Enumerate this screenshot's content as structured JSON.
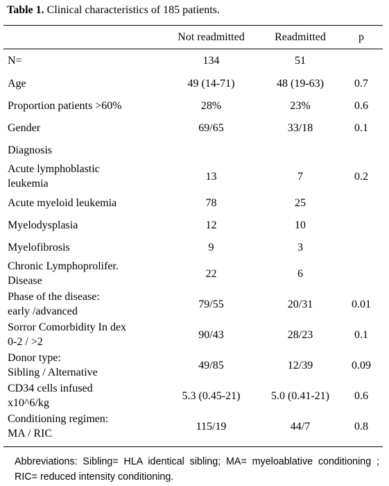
{
  "caption": {
    "label": "Table 1.",
    "text": " Clinical characteristics of 185 patients."
  },
  "table": {
    "columns": [
      "",
      "Not readmitted",
      "Readmitted",
      "p"
    ],
    "rows": [
      {
        "label": "N=",
        "not_readmitted": "134",
        "readmitted": "51",
        "p": ""
      },
      {
        "label": "Age",
        "not_readmitted": "49 (14-71)",
        "readmitted": "48 (19-63)",
        "p": "0.7"
      },
      {
        "label": "Proportion patients >60%",
        "not_readmitted": "28%",
        "readmitted": "23%",
        "p": "0.6"
      },
      {
        "label": "Gender",
        "not_readmitted": "69/65",
        "readmitted": "33/18",
        "p": "0.1"
      },
      {
        "label": "Diagnosis",
        "not_readmitted": "",
        "readmitted": "",
        "p": ""
      },
      {
        "label": [
          "Acute lymphoblastic",
          "leukemia"
        ],
        "not_readmitted": "13",
        "readmitted": "7",
        "p": "0.2"
      },
      {
        "label": "Acute myeloid leukemia",
        "not_readmitted": "78",
        "readmitted": "25",
        "p": ""
      },
      {
        "label": "Myelodysplasia",
        "not_readmitted": "12",
        "readmitted": "10",
        "p": ""
      },
      {
        "label": "Myelofibrosis",
        "not_readmitted": "9",
        "readmitted": "3",
        "p": ""
      },
      {
        "label": [
          "Chronic Lymphoprolifer.",
          "Disease"
        ],
        "not_readmitted": "22",
        "readmitted": "6",
        "p": ""
      },
      {
        "label": [
          "Phase of the disease:",
          "early /advanced"
        ],
        "not_readmitted": "79/55",
        "readmitted": "20/31",
        "p": "0.01"
      },
      {
        "label": [
          "Sorror Comorbidity In dex",
          "0-2 / >2"
        ],
        "not_readmitted": "90/43",
        "readmitted": "28/23",
        "p": "0.1"
      },
      {
        "label": [
          "Donor type:",
          "Sibling / Alternative"
        ],
        "not_readmitted": "49/85",
        "readmitted": "12/39",
        "p": "0.09"
      },
      {
        "label": [
          "CD34 cells infused",
          "x10^6/kg"
        ],
        "not_readmitted": "5.3 (0.45-21)",
        "readmitted": "5.0 (0.41-21)",
        "p": "0.6"
      },
      {
        "label": [
          "Conditioning regimen:",
          "MA / RIC"
        ],
        "not_readmitted": "115/19",
        "readmitted": "44/7",
        "p": "0.8"
      }
    ]
  },
  "footnote": "Abbreviations: Sibling= HLA identical sibling; MA= myeloablative conditioning ; RIC= reduced intensity conditioning."
}
